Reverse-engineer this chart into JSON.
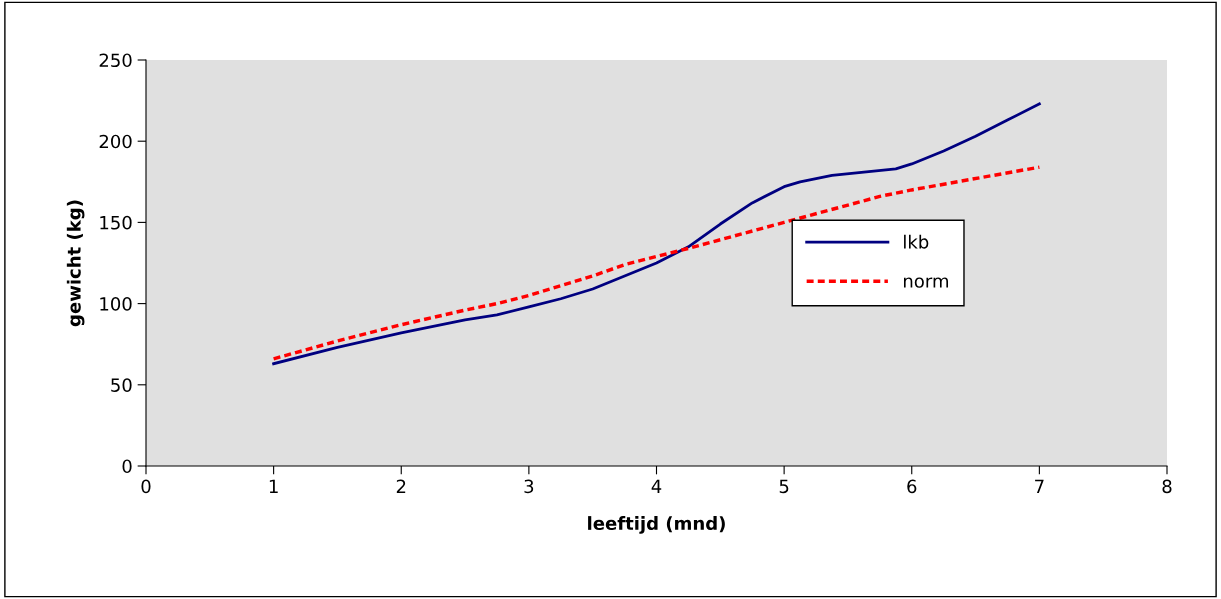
{
  "chart_data": {
    "type": "line",
    "xlabel": "leeftijd (mnd)",
    "ylabel": "gewicht (kg)",
    "xlim": [
      0,
      8
    ],
    "xticks": [
      0,
      1,
      2,
      3,
      4,
      5,
      6,
      7,
      8
    ],
    "ylim": [
      0,
      250
    ],
    "yticks": [
      0,
      50,
      100,
      150,
      200,
      250
    ],
    "grid": false,
    "legend": "center right",
    "series": [
      {
        "name": "lkb",
        "color": "#000080",
        "line_style": "solid",
        "x": [
          1,
          1.5,
          2,
          2.5,
          2.75,
          3,
          3.25,
          3.5,
          4,
          4.25,
          4.5,
          4.75,
          5,
          5.125,
          5.375,
          5.875,
          6,
          6.25,
          6.5,
          6.75,
          7
        ],
        "values": [
          63,
          73,
          82,
          90,
          93,
          98,
          103,
          109,
          125,
          135,
          149,
          162,
          172,
          175,
          179,
          183,
          186,
          194,
          203,
          213,
          223
        ]
      },
      {
        "name": "norm",
        "color": "#ff0000",
        "line_style": "dashed",
        "x": [
          1,
          1.5,
          2,
          2.5,
          2.75,
          3,
          3.5,
          3.75,
          4,
          4.25,
          5,
          5.75,
          6,
          7
        ],
        "values": [
          66,
          77,
          87,
          96,
          100,
          105,
          117,
          124,
          129,
          134,
          150,
          166,
          170,
          184
        ]
      }
    ]
  }
}
